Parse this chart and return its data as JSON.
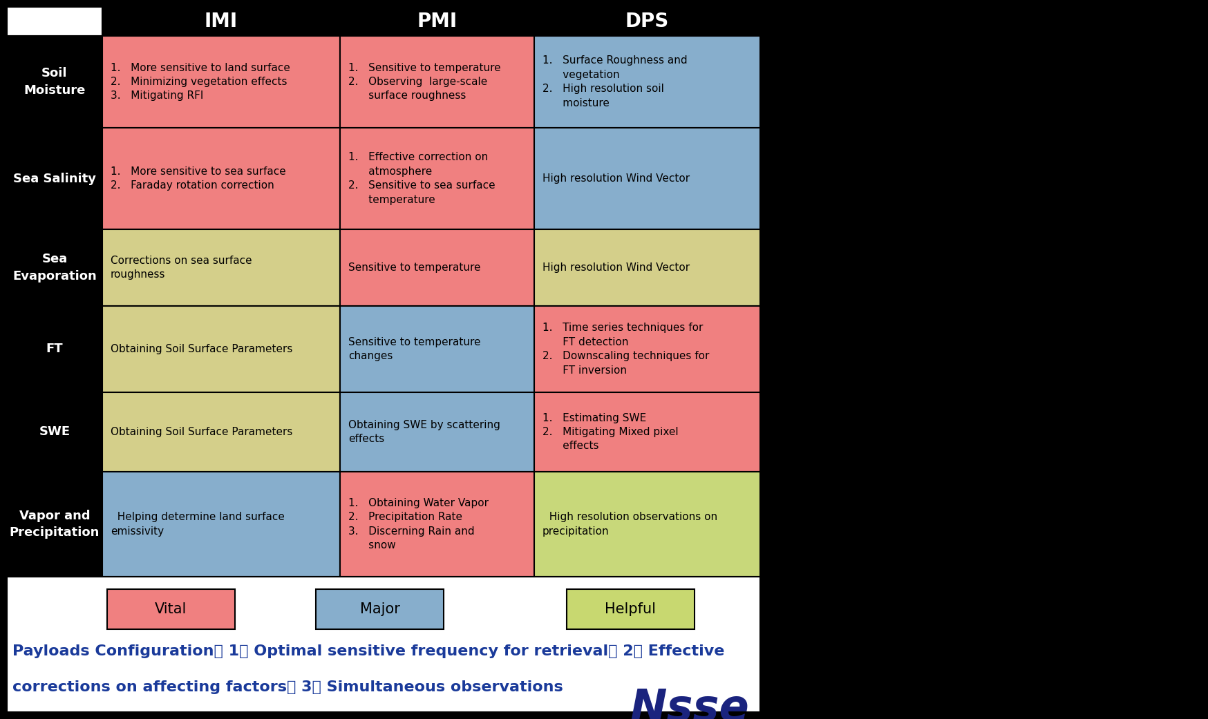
{
  "fig_w": 1749,
  "fig_h": 1041,
  "col_headers": [
    "IMI",
    "PMI",
    "DPS"
  ],
  "row_headers": [
    "Soil\nMoisture",
    "Sea Salinity",
    "Sea\nEvaporation",
    "FT",
    "SWE",
    "Vapor and\nPrecipitation"
  ],
  "background_color": "#000000",
  "cell_colors_actual": [
    [
      "#F08080",
      "#F08080",
      "#87AECC"
    ],
    [
      "#F08080",
      "#F08080",
      "#87AECC"
    ],
    [
      "#D4CF8A",
      "#F08080",
      "#D4CF8A"
    ],
    [
      "#D4CF8A",
      "#87AECC",
      "#F08080"
    ],
    [
      "#D4CF8A",
      "#87AECC",
      "#F08080"
    ],
    [
      "#87AECC",
      "#F08080",
      "#C8D87A"
    ]
  ],
  "cell_texts": [
    [
      "1.   More sensitive to land surface\n2.   Minimizing vegetation effects\n3.   Mitigating RFI",
      "1.   Sensitive to temperature\n2.   Observing  large-scale\n      surface roughness",
      "1.   Surface Roughness and\n      vegetation\n2.   High resolution soil\n      moisture"
    ],
    [
      "1.   More sensitive to sea surface\n2.   Faraday rotation correction",
      "1.   Effective correction on\n      atmosphere\n2.   Sensitive to sea surface\n      temperature",
      "High resolution Wind Vector"
    ],
    [
      "Corrections on sea surface\nroughness",
      "Sensitive to temperature",
      "High resolution Wind Vector"
    ],
    [
      "Obtaining Soil Surface Parameters",
      "Sensitive to temperature\nchanges",
      "1.   Time series techniques for\n      FT detection\n2.   Downscaling techniques for\n      FT inversion"
    ],
    [
      "Obtaining Soil Surface Parameters",
      "Obtaining SWE by scattering\neffects",
      "1.   Estimating SWE\n2.   Mitigating Mixed pixel\n      effects"
    ],
    [
      "  Helping determine land surface\nemissivity",
      "1.   Obtaining Water Vapor\n2.   Precipitation Rate\n3.   Discerning Rain and\n      snow",
      "  High resolution observations on\nprecipitation"
    ]
  ],
  "footer_text_line1": "Payloads Configuration： 1） Optimal sensitive frequency for retrieval， 2） Effective",
  "footer_text_line2": "corrections on affecting factors， 3） Simultaneous observations",
  "footer_color": "#1A3A9A",
  "vital_color": "#F08080",
  "major_color": "#87AECC",
  "helpful_color": "#C8D870",
  "vital_label": "Vital",
  "major_label": "Major",
  "helpful_label": "Helpful",
  "c0": 10,
  "c1": 148,
  "c2": 492,
  "c3": 773,
  "c4": 1100,
  "r0": 10,
  "r1": 52,
  "r2": 185,
  "r3": 332,
  "r4": 443,
  "r5": 568,
  "r6": 683,
  "r7": 835
}
